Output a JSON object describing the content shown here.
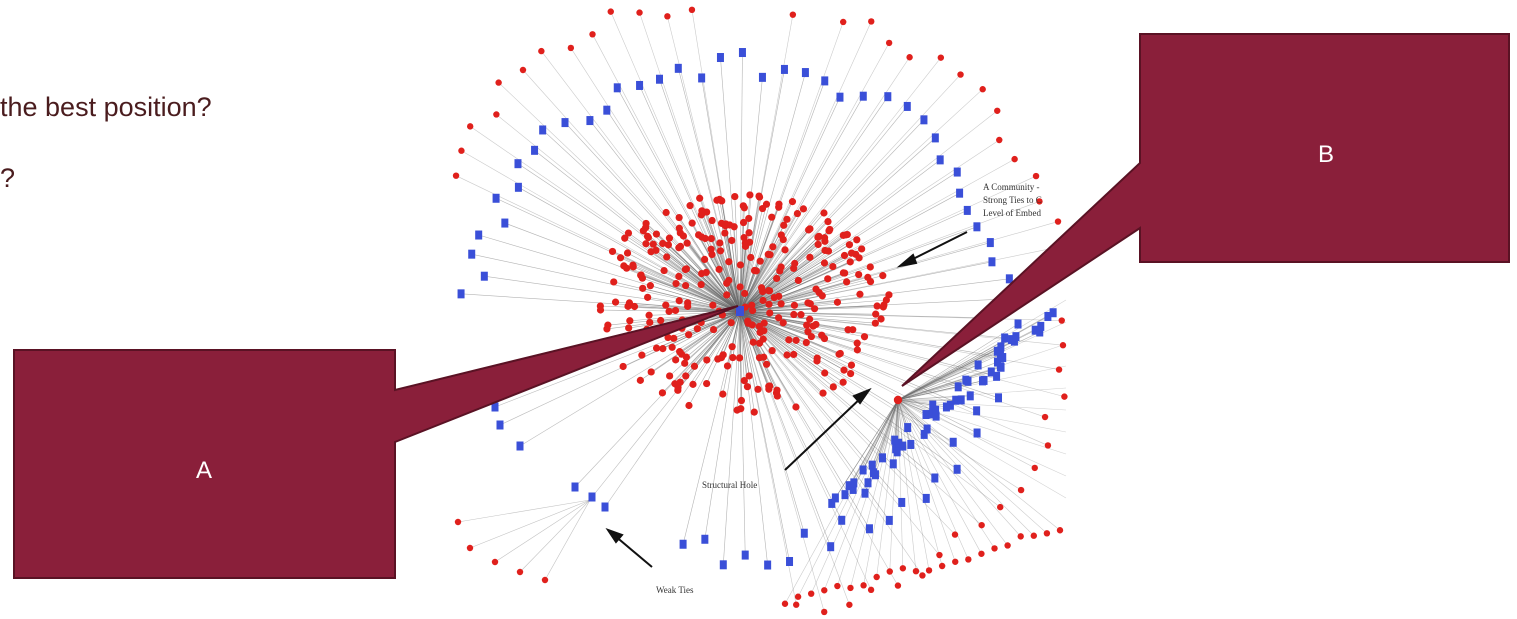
{
  "slide": {
    "question_1": "the best position?",
    "question_2": "?"
  },
  "network": {
    "annotations": {
      "community": [
        "A Community -",
        "Strong Ties to C",
        "Level of Embed"
      ],
      "structural_hole": "Structural Hole",
      "weak_ties": "Weak Ties"
    },
    "node_colors": {
      "strong_tie_node": "#e0201c",
      "weak_tie_node": "#3a4fd8",
      "edge": "#6a6a6a"
    }
  },
  "callouts": {
    "a": {
      "label": "A",
      "fill": "#8a1f3a",
      "stroke": "#5a1224"
    },
    "b": {
      "label": "B",
      "fill": "#8a1f3a",
      "stroke": "#5a1224"
    }
  }
}
